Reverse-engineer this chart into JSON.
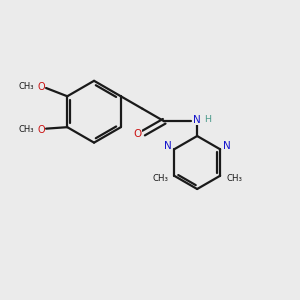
{
  "bg_color": "#ebebeb",
  "bond_color": "#1a1a1a",
  "N_color": "#1414cc",
  "O_color": "#cc1414",
  "NH_color": "#4a9a8a",
  "lw": 1.6,
  "fig_width": 3.0,
  "fig_height": 3.0,
  "dpi": 100,
  "xlim": [
    0,
    10
  ],
  "ylim": [
    0,
    10
  ]
}
